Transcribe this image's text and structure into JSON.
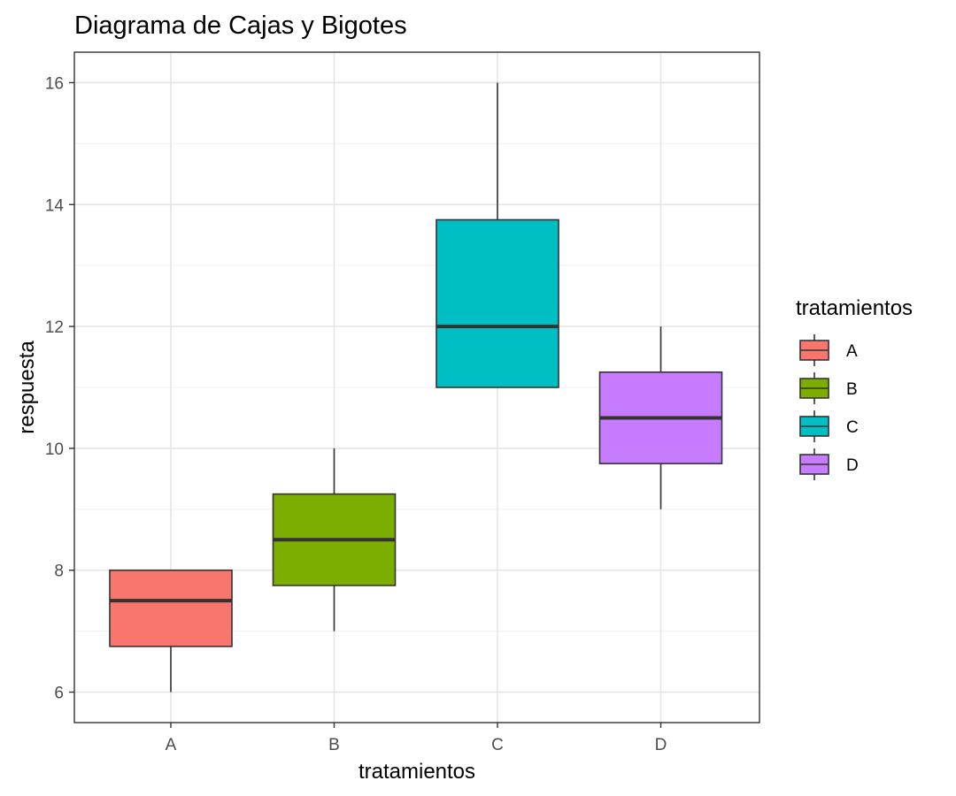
{
  "chart_data": {
    "type": "boxplot",
    "title": "Diagrama de Cajas y Bigotes",
    "xlabel": "tratamientos",
    "ylabel": "respuesta",
    "categories": [
      "A",
      "B",
      "C",
      "D"
    ],
    "ylim": [
      5.5,
      16.5
    ],
    "yticks": [
      6,
      8,
      10,
      12,
      14,
      16
    ],
    "yticks_labels": [
      "6",
      "8",
      "10",
      "12",
      "14",
      "16"
    ],
    "minor_yticks": [
      7,
      9,
      11,
      13,
      15
    ],
    "grid": true,
    "boxes": [
      {
        "category": "A",
        "min": 6,
        "q1": 6.75,
        "median": 7.5,
        "q3": 8,
        "max": 8,
        "color": "#F8766D"
      },
      {
        "category": "B",
        "min": 7,
        "q1": 7.75,
        "median": 8.5,
        "q3": 9.25,
        "max": 10,
        "color": "#7CAE00"
      },
      {
        "category": "C",
        "min": 11,
        "q1": 11,
        "median": 12,
        "q3": 13.75,
        "max": 16,
        "color": "#00BFC4"
      },
      {
        "category": "D",
        "min": 9,
        "q1": 9.75,
        "median": 10.5,
        "q3": 11.25,
        "max": 12,
        "color": "#C77CFF"
      }
    ],
    "legend": {
      "title": "tratamientos",
      "position": "right",
      "items": [
        "A",
        "B",
        "C",
        "D"
      ]
    }
  }
}
